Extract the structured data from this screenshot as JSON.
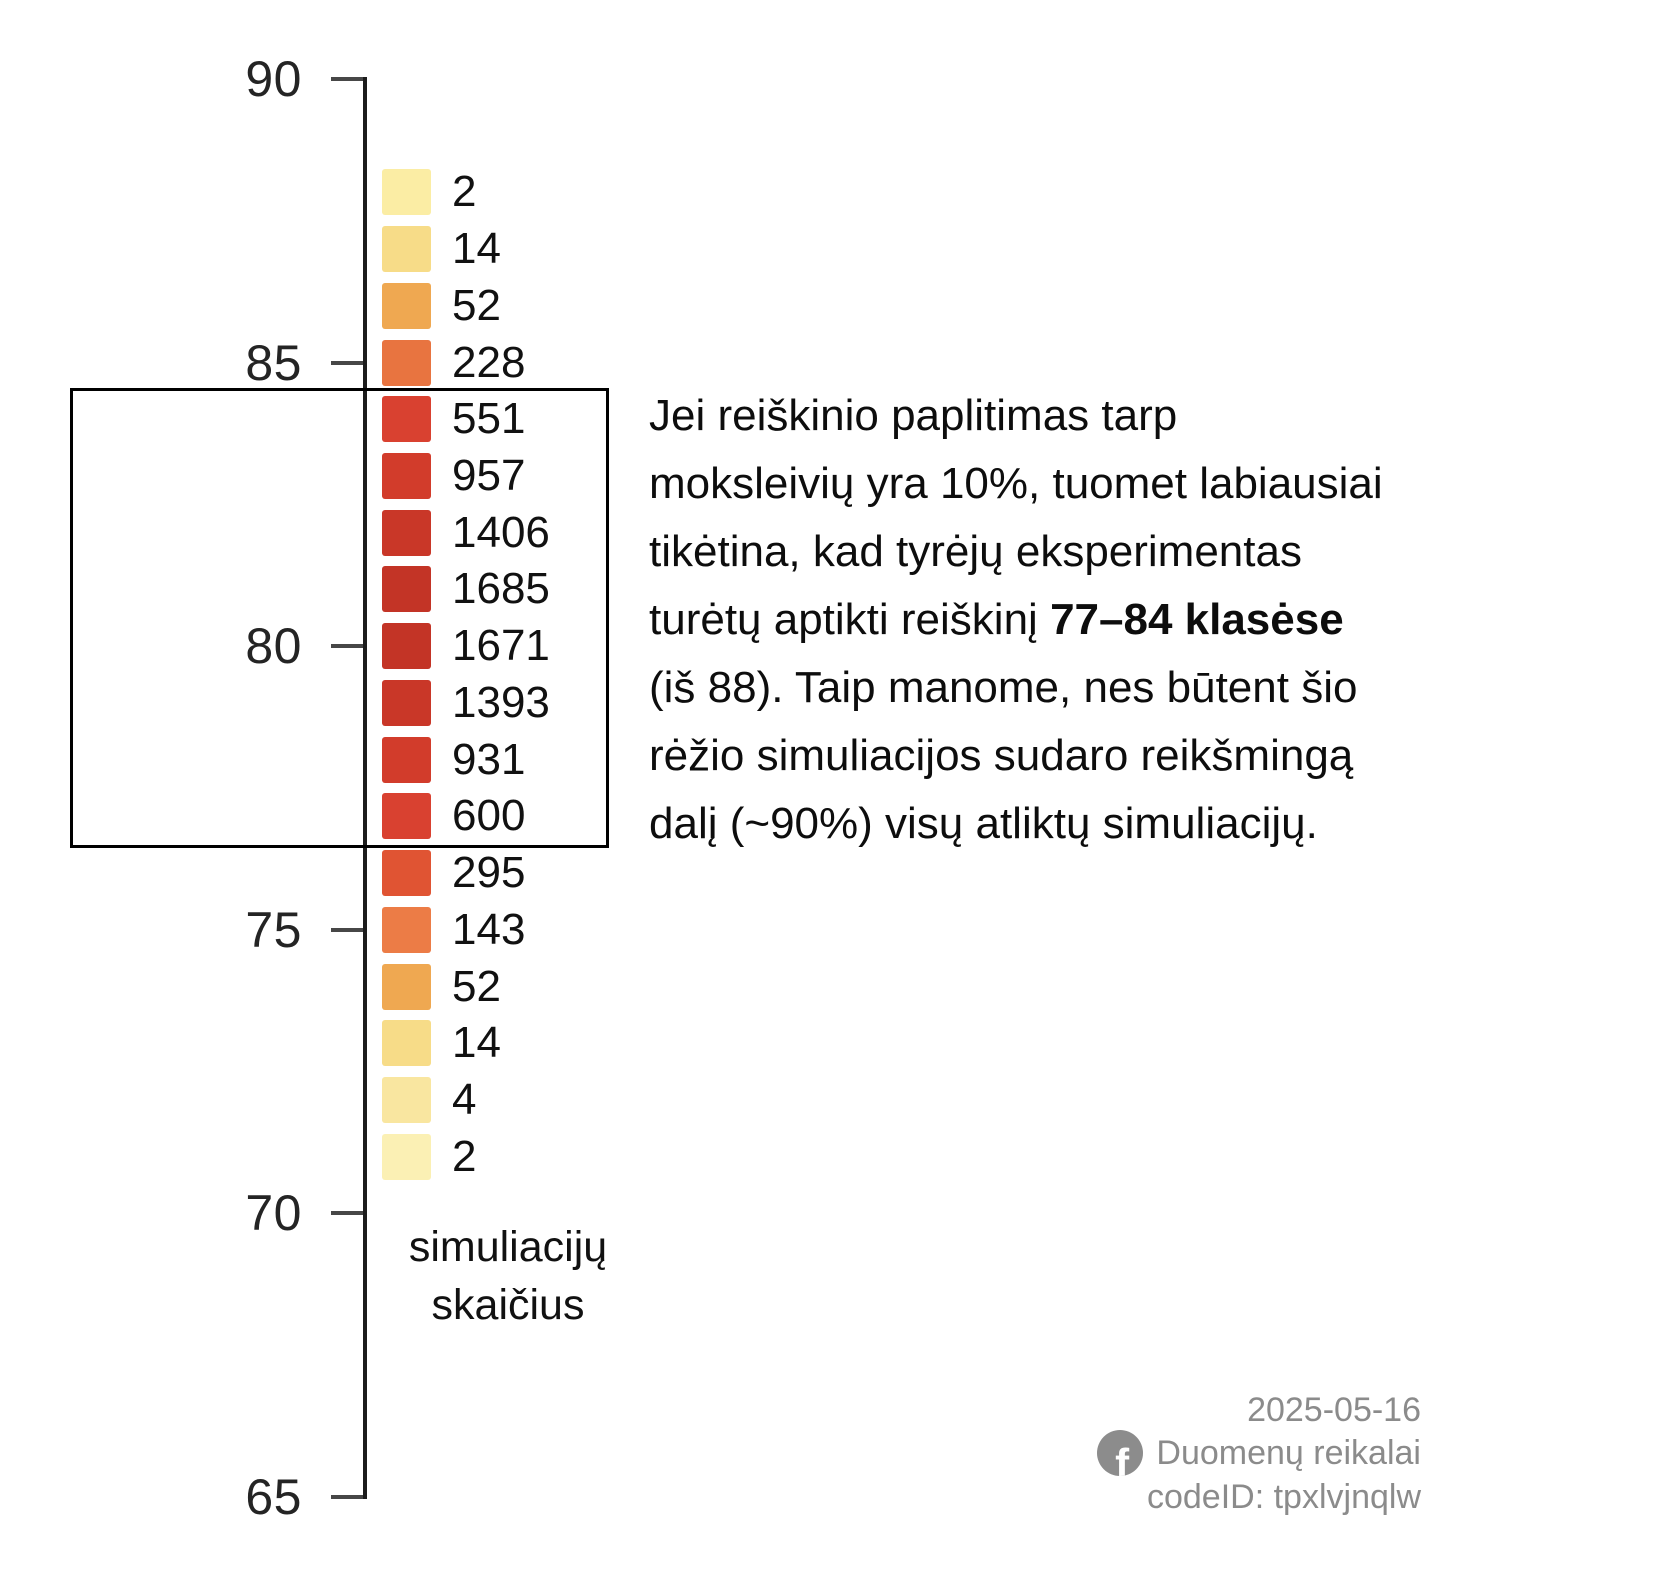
{
  "chart_data": {
    "type": "heatmap",
    "title": "",
    "legend_label": "simuliacijų skaičius",
    "legend_label_lines": [
      "simuliacijų",
      "skaičius"
    ],
    "axis_ticks": [
      90,
      85,
      80,
      75,
      70,
      65
    ],
    "axis_range": [
      65,
      90
    ],
    "grid": false,
    "positions": [
      88,
      87,
      86,
      85,
      84,
      83,
      82,
      81,
      80,
      79,
      78,
      77,
      76,
      75,
      74,
      73,
      72,
      71
    ],
    "values": [
      2,
      14,
      52,
      228,
      551,
      957,
      1406,
      1685,
      1671,
      1393,
      931,
      600,
      295,
      143,
      52,
      14,
      4,
      2
    ],
    "colors": [
      "#FBEDA4",
      "#F7DC88",
      "#EFA851",
      "#E87440",
      "#D94130",
      "#D23C2B",
      "#C93728",
      "#C33426",
      "#C33426",
      "#C93728",
      "#D23C2B",
      "#D94130",
      "#E05433",
      "#EC7C46",
      "#EFA851",
      "#F7DC88",
      "#F9E6A0",
      "#FBF0B4"
    ],
    "highlight_range": [
      77,
      84
    ]
  },
  "paragraph": {
    "lines": [
      {
        "text": "Jei reiškinio paplitimas tarp"
      },
      {
        "text": "moksleivių yra 10%, tuomet labiausiai"
      },
      {
        "text": "tikėtina, kad tyrėjų eksperimentas"
      },
      {
        "pre": "turėtų aptikti reiškinį ",
        "bold": "77–84 klasėse"
      },
      {
        "text": "(iš 88). Taip manome, nes būtent šio"
      },
      {
        "text": "rėžio simuliacijos sudaro reikšmingą"
      },
      {
        "text": "dalį (~90%) visų atliktų simuliacijų."
      }
    ]
  },
  "footer": {
    "date": "2025-05-16",
    "brand": "Duomenų reikalai",
    "code_id": "codeID: tpxlvjnqlw",
    "facebook_icon_letter": "f",
    "text_color": "#8b8b8b"
  },
  "style": {
    "background": "#FFFFFF",
    "axis_color": "#1c1c1c",
    "highlight_border": "#000000",
    "darkest_red": "#C33426"
  }
}
